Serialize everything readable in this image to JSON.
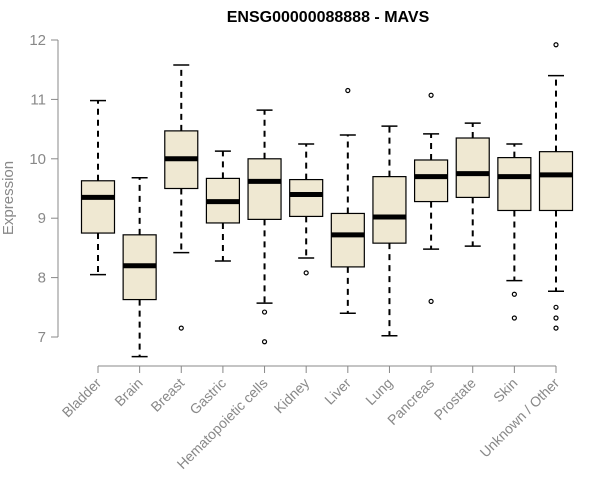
{
  "chart_data": {
    "type": "boxplot",
    "title": "ENSG00000088888 - MAVS",
    "xlabel": "",
    "ylabel": "Expression",
    "ylim": [
      6.6,
      12.1
    ],
    "yticks": [
      7,
      8,
      9,
      10,
      11,
      12
    ],
    "grid": false,
    "legend": "none",
    "box_fill": "#efe8d2",
    "categories": [
      "Bladder",
      "Brain",
      "Breast",
      "Gastric",
      "Hematopoietic cells",
      "Kidney",
      "Liver",
      "Lung",
      "Pancreas",
      "Prostate",
      "Skin",
      "Unknown / Other"
    ],
    "boxes": [
      {
        "min": 8.05,
        "q1": 8.75,
        "median": 9.35,
        "q3": 9.63,
        "max": 10.98,
        "outliers": []
      },
      {
        "min": 6.67,
        "q1": 7.63,
        "median": 8.2,
        "q3": 8.72,
        "max": 9.68,
        "outliers": []
      },
      {
        "min": 8.42,
        "q1": 9.5,
        "median": 10.0,
        "q3": 10.47,
        "max": 11.58,
        "outliers": [
          7.15
        ]
      },
      {
        "min": 8.28,
        "q1": 8.92,
        "median": 9.28,
        "q3": 9.67,
        "max": 10.13,
        "outliers": []
      },
      {
        "min": 7.57,
        "q1": 8.98,
        "median": 9.62,
        "q3": 10.0,
        "max": 10.82,
        "outliers": [
          7.42,
          6.92
        ]
      },
      {
        "min": 8.33,
        "q1": 9.03,
        "median": 9.4,
        "q3": 9.65,
        "max": 10.25,
        "outliers": [
          8.08
        ]
      },
      {
        "min": 7.4,
        "q1": 8.18,
        "median": 8.72,
        "q3": 9.08,
        "max": 10.4,
        "outliers": [
          11.15
        ]
      },
      {
        "min": 7.02,
        "q1": 8.58,
        "median": 9.02,
        "q3": 9.7,
        "max": 10.55,
        "outliers": []
      },
      {
        "min": 8.48,
        "q1": 9.28,
        "median": 9.7,
        "q3": 9.98,
        "max": 10.42,
        "outliers": [
          11.07,
          7.6
        ]
      },
      {
        "min": 8.53,
        "q1": 9.35,
        "median": 9.75,
        "q3": 10.35,
        "max": 10.6,
        "outliers": []
      },
      {
        "min": 7.95,
        "q1": 9.13,
        "median": 9.7,
        "q3": 10.02,
        "max": 10.25,
        "outliers": [
          7.72,
          7.32
        ]
      },
      {
        "min": 7.77,
        "q1": 9.13,
        "median": 9.73,
        "q3": 10.12,
        "max": 11.4,
        "outliers": [
          11.92,
          7.5,
          7.32,
          7.15
        ]
      }
    ]
  }
}
